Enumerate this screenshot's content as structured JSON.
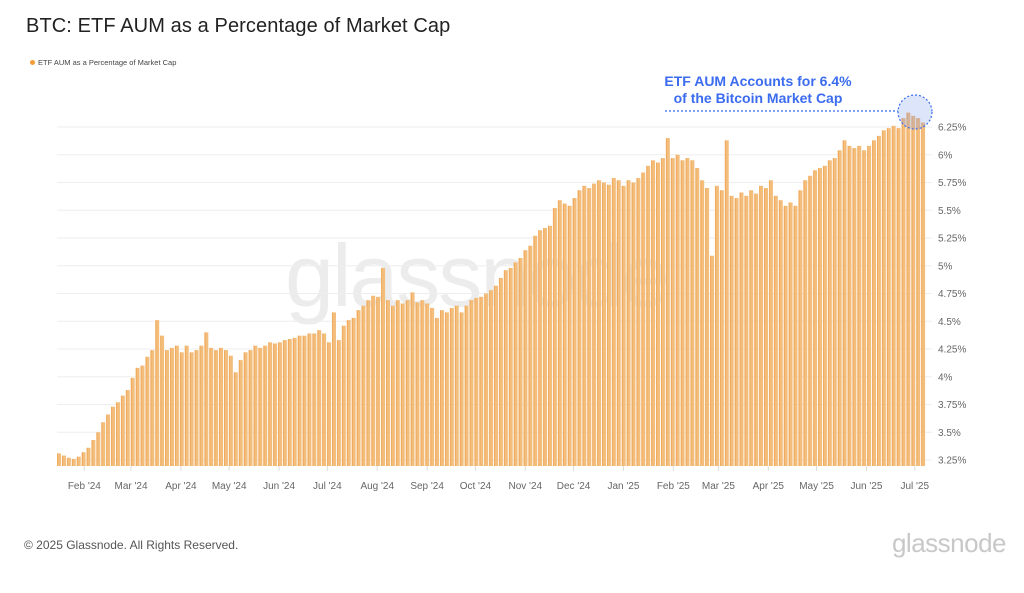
{
  "title": "BTC: ETF AUM as a Percentage of Market Cap",
  "legend": {
    "label": "ETF AUM as a Percentage of Market Cap",
    "color": "#f29d38"
  },
  "annotation": {
    "line1": "ETF AUM Accounts for 6.4%",
    "line2": "of the Bitcoin Market Cap",
    "color": "#3b6cf0"
  },
  "watermark": "glassnode",
  "footer": {
    "copyright": "© 2025 Glassnode. All Rights Reserved.",
    "brand": "glassnode"
  },
  "chart_data": {
    "type": "bar",
    "title": "BTC: ETF AUM as a Percentage of Market Cap",
    "xlabel": "",
    "ylabel": "",
    "ylim": [
      3.25,
      6.25
    ],
    "y_ticks": [
      "3.25%",
      "3.5%",
      "3.75%",
      "4%",
      "4.25%",
      "4.5%",
      "4.75%",
      "5%",
      "5.25%",
      "5.5%",
      "5.75%",
      "6%",
      "6.25%"
    ],
    "y_tick_values": [
      3.25,
      3.5,
      3.75,
      4,
      4.25,
      4.5,
      4.75,
      5,
      5.25,
      5.5,
      5.75,
      6,
      6.25
    ],
    "x_ticks": [
      "Feb '24",
      "Mar '24",
      "Apr '24",
      "May '24",
      "Jun '24",
      "Jul '24",
      "Aug '24",
      "Sep '24",
      "Oct '24",
      "Nov '24",
      "Dec '24",
      "Jan '25",
      "Feb '25",
      "Mar '25",
      "Apr '25",
      "May '25",
      "Jun '25",
      "Jul '25"
    ],
    "x_tick_dates": [
      "2024-02-01",
      "2024-03-01",
      "2024-04-01",
      "2024-05-01",
      "2024-06-01",
      "2024-07-01",
      "2024-08-01",
      "2024-09-01",
      "2024-10-01",
      "2024-11-01",
      "2024-12-01",
      "2025-01-01",
      "2025-02-01",
      "2025-03-01",
      "2025-04-01",
      "2025-05-01",
      "2025-06-01",
      "2025-07-01"
    ],
    "x_start": "2024-01-15",
    "x_end": "2025-07-08",
    "grid": true,
    "legend_position": "top-left",
    "series": [
      {
        "name": "ETF AUM as a Percentage of Market Cap",
        "unit": "%",
        "values": [
          3.31,
          3.29,
          3.27,
          3.26,
          3.28,
          3.32,
          3.36,
          3.43,
          3.5,
          3.59,
          3.66,
          3.73,
          3.77,
          3.83,
          3.88,
          3.99,
          4.08,
          4.1,
          4.18,
          4.24,
          4.51,
          4.37,
          4.24,
          4.26,
          4.28,
          4.22,
          4.28,
          4.22,
          4.24,
          4.28,
          4.4,
          4.26,
          4.24,
          4.26,
          4.24,
          4.19,
          4.04,
          4.15,
          4.22,
          4.24,
          4.28,
          4.26,
          4.28,
          4.31,
          4.3,
          4.31,
          4.33,
          4.34,
          4.35,
          4.37,
          4.37,
          4.39,
          4.39,
          4.42,
          4.39,
          4.31,
          4.58,
          4.33,
          4.46,
          4.51,
          4.53,
          4.6,
          4.64,
          4.69,
          4.73,
          4.72,
          4.98,
          4.69,
          4.64,
          4.69,
          4.66,
          4.69,
          4.76,
          4.67,
          4.69,
          4.66,
          4.62,
          4.53,
          4.6,
          4.58,
          4.62,
          4.64,
          4.58,
          4.64,
          4.69,
          4.71,
          4.72,
          4.75,
          4.78,
          4.82,
          4.89,
          4.96,
          4.98,
          5.03,
          5.07,
          5.14,
          5.18,
          5.27,
          5.32,
          5.34,
          5.36,
          5.52,
          5.59,
          5.56,
          5.54,
          5.61,
          5.68,
          5.72,
          5.7,
          5.74,
          5.77,
          5.75,
          5.73,
          5.79,
          5.77,
          5.72,
          5.77,
          5.75,
          5.79,
          5.84,
          5.9,
          5.95,
          5.93,
          5.97,
          6.15,
          5.97,
          6.0,
          5.95,
          5.97,
          5.95,
          5.88,
          5.77,
          5.7,
          5.09,
          5.72,
          5.68,
          6.13,
          5.63,
          5.61,
          5.66,
          5.63,
          5.68,
          5.65,
          5.72,
          5.7,
          5.77,
          5.63,
          5.59,
          5.54,
          5.57,
          5.54,
          5.68,
          5.77,
          5.81,
          5.86,
          5.88,
          5.9,
          5.95,
          5.97,
          6.04,
          6.13,
          6.08,
          6.06,
          6.08,
          6.04,
          6.08,
          6.13,
          6.17,
          6.22,
          6.24,
          6.26,
          6.24,
          6.33,
          6.38,
          6.35,
          6.33,
          6.29
        ]
      }
    ],
    "annotations": [
      "ETF AUM Accounts for 6.4% of the Bitcoin Market Cap"
    ]
  }
}
